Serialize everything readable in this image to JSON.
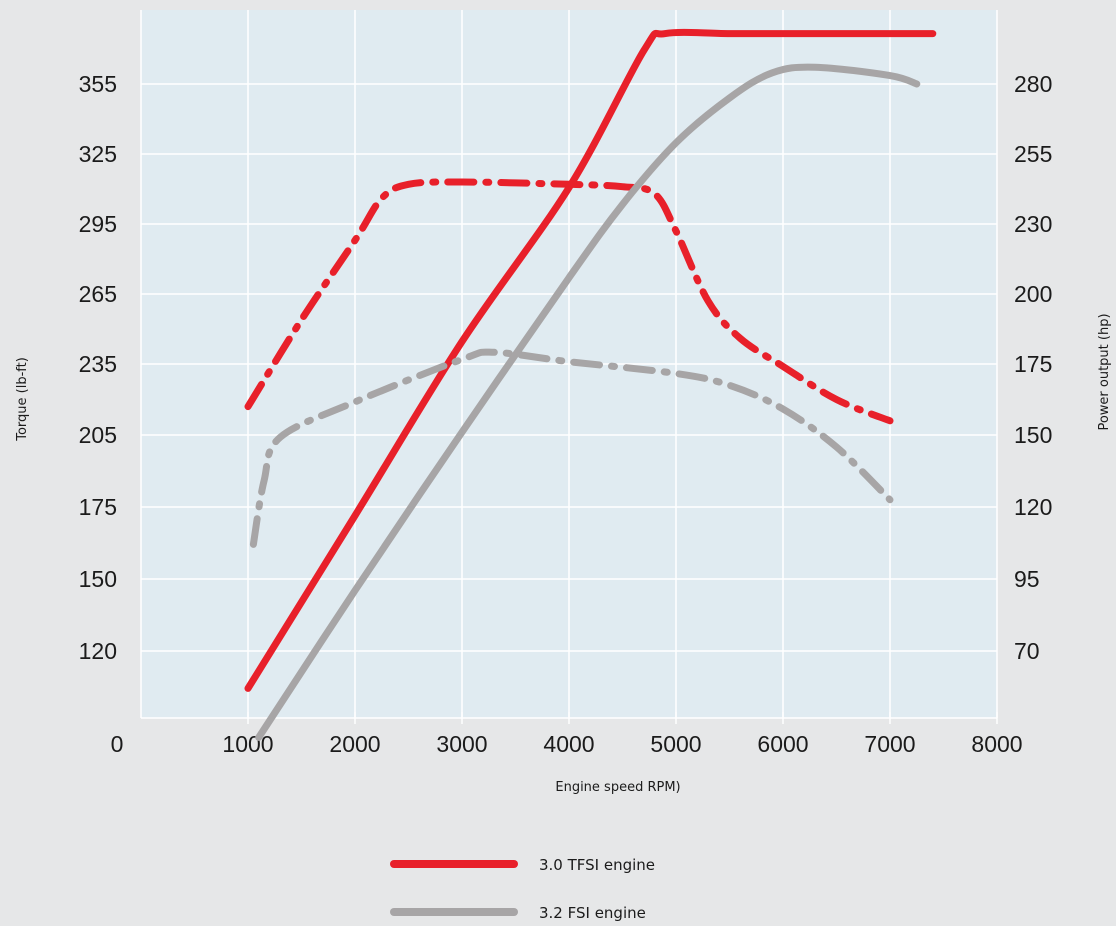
{
  "chart_data": {
    "type": "line",
    "title": "",
    "xlabel": "Engine speed RPM)",
    "ylabel_left": "Torque (lb-ft)",
    "ylabel_right": "Power output (hp)",
    "x_ticks": [
      "0",
      "1000",
      "2000",
      "3000",
      "4000",
      "5000",
      "6000",
      "7000",
      "8000"
    ],
    "y_left_ticks": [
      "120",
      "150",
      "175",
      "205",
      "235",
      "265",
      "295",
      "325",
      "355"
    ],
    "y_right_ticks": [
      "70",
      "95",
      "120",
      "150",
      "175",
      "200",
      "230",
      "255",
      "280"
    ],
    "xlim": [
      0,
      8000
    ],
    "grid": true,
    "colors": {
      "tfsi": "#e8202a",
      "fsi": "#a7a5a6",
      "plot_bg": "#e0ebf1",
      "grid": "#ffffff",
      "page_bg": "#e6e7e8"
    },
    "series": [
      {
        "name": "3.0 TFSI engine",
        "metric": "torque",
        "axis": "left",
        "style": "dash-dot",
        "color": "#e8202a",
        "x": [
          1000,
          1500,
          2000,
          2250,
          2500,
          3000,
          4000,
          4500,
          4800,
          5000,
          5300,
          5600,
          6000,
          6500,
          7000
        ],
        "y": [
          217,
          254,
          288,
          306,
          312,
          313,
          312,
          311,
          308,
          292,
          262,
          246,
          234,
          220,
          211
        ]
      },
      {
        "name": "3.0 TFSI engine",
        "metric": "power",
        "axis": "right",
        "style": "solid",
        "color": "#e8202a",
        "x": [
          1000,
          2000,
          3000,
          4000,
          4700,
          4900,
          5500,
          6000,
          7000,
          7400
        ],
        "y": [
          57,
          117,
          183,
          243,
          292,
          298,
          298,
          298,
          298,
          298
        ]
      },
      {
        "name": "3.2 FSI engine",
        "metric": "torque",
        "axis": "left",
        "style": "dash-dot",
        "color": "#a7a5a6",
        "x": [
          1050,
          1150,
          1300,
          2000,
          3000,
          3300,
          4000,
          5000,
          5500,
          6000,
          6500,
          7000
        ],
        "y": [
          162,
          186,
          204,
          219,
          237,
          240,
          236,
          231,
          226,
          216,
          200,
          178
        ]
      },
      {
        "name": "3.2 FSI engine",
        "metric": "power",
        "axis": "right",
        "style": "solid",
        "color": "#a7a5a6",
        "x": [
          1100,
          2000,
          3000,
          4000,
          4500,
          5000,
          5500,
          5900,
          6300,
          7000,
          7250
        ],
        "y": [
          40,
          91,
          151,
          207,
          237,
          259,
          275,
          284,
          286,
          283,
          280
        ]
      }
    ],
    "legend": [
      {
        "label": "3.0 TFSI engine",
        "color": "#e8202a"
      },
      {
        "label": "3.2 FSI engine",
        "color": "#a7a5a6"
      }
    ],
    "legend_position": "bottom-center"
  }
}
